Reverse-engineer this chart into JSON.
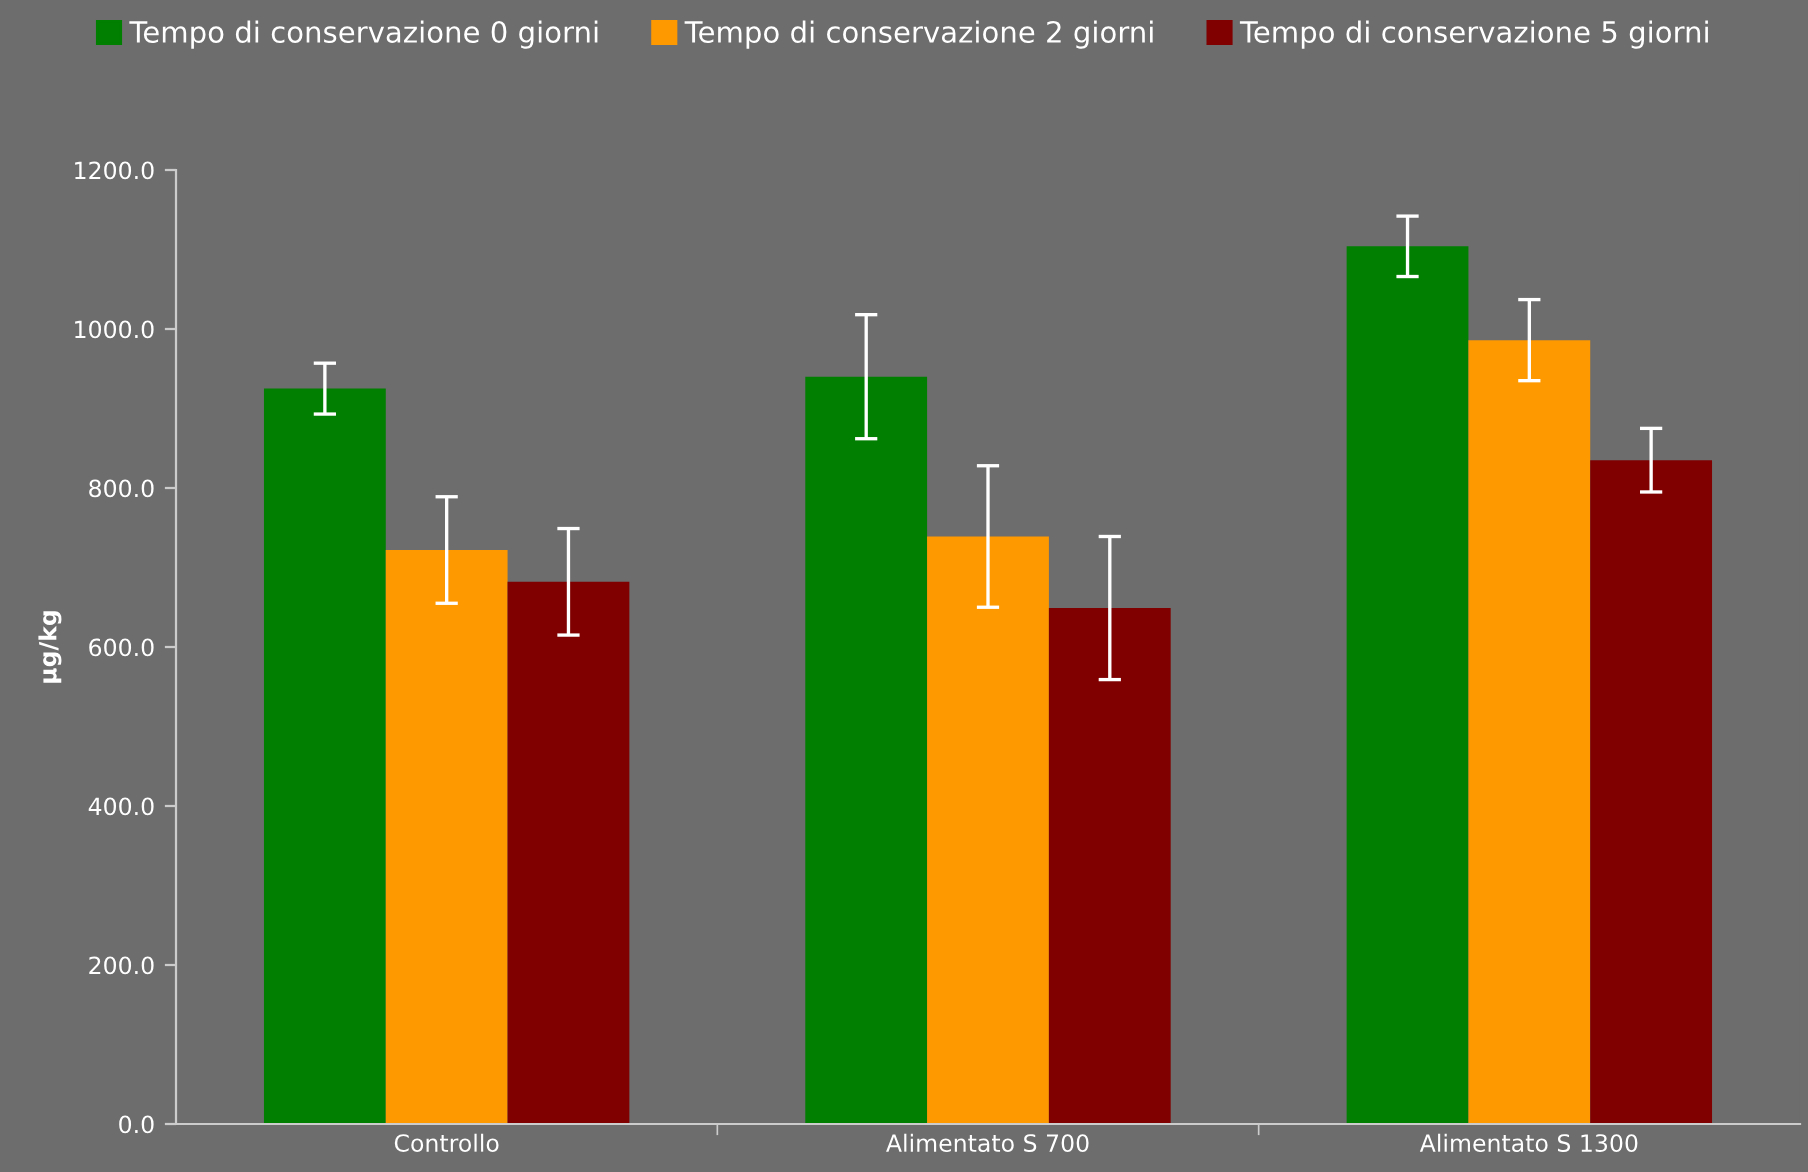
{
  "chart_data": {
    "type": "bar",
    "ylabel": "µg/kg",
    "categories": [
      "Controllo",
      "Alimentato S 700",
      "Alimentato S 1300"
    ],
    "series": [
      {
        "name": "Tempo di conservazione 0 giorni",
        "color": "#007f00",
        "values": [
          925,
          940,
          1104
        ],
        "errors": [
          32,
          78,
          38
        ]
      },
      {
        "name": "Tempo di conservazione 2 giorni",
        "color": "#ff9900",
        "values": [
          722,
          739,
          986
        ],
        "errors": [
          67,
          89,
          51
        ]
      },
      {
        "name": "Tempo di conservazione 5 giorni",
        "color": "#800000",
        "values": [
          682,
          649,
          835
        ],
        "errors": [
          67,
          90,
          40
        ]
      }
    ],
    "ylim": [
      0,
      1200
    ],
    "yticks": [
      {
        "value": 0,
        "label": "0.0"
      },
      {
        "value": 200,
        "label": "200.0"
      },
      {
        "value": 400,
        "label": "400.0"
      },
      {
        "value": 600,
        "label": "600.0"
      },
      {
        "value": 800,
        "label": "800.0"
      },
      {
        "value": 1000,
        "label": "1000.0"
      },
      {
        "value": 1200,
        "label": "1200.0"
      }
    ],
    "grid": false,
    "legend": "top"
  }
}
